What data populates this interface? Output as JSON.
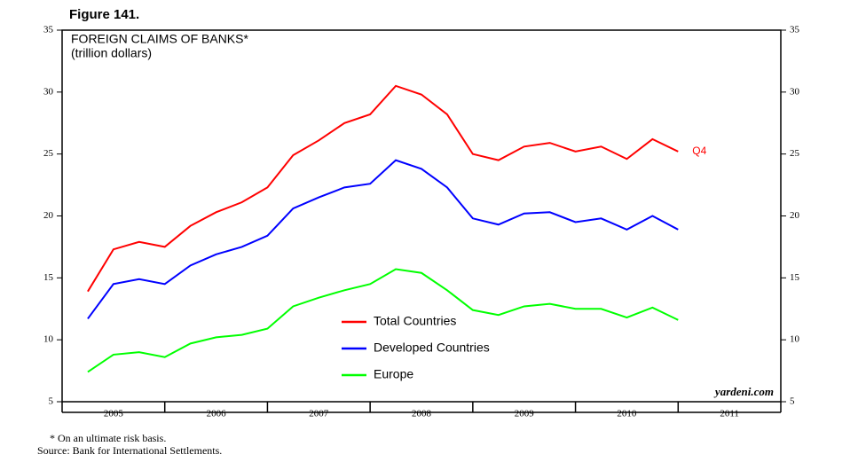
{
  "chart_data": {
    "type": "line",
    "figure_label": "Figure 141.",
    "title": "FOREIGN CLAIMS OF BANKS*",
    "subtitle": "(trillion dollars)",
    "years": [
      "2005",
      "2006",
      "2007",
      "2008",
      "2009",
      "2010",
      "2011"
    ],
    "ylim": [
      5,
      35
    ],
    "yticks": [
      5,
      10,
      15,
      20,
      25,
      30,
      35
    ],
    "y2lim": [
      5,
      35
    ],
    "y2ticks": [
      5,
      10,
      15,
      20,
      25,
      30,
      35
    ],
    "series": [
      {
        "name": "Total Countries",
        "color": "#ff0000",
        "values": [
          13.9,
          17.3,
          17.9,
          17.5,
          19.2,
          20.3,
          21.1,
          22.3,
          24.9,
          26.1,
          27.5,
          28.2,
          30.5,
          29.8,
          28.2,
          25.0,
          24.5,
          25.6,
          25.9,
          25.2,
          25.6,
          24.6,
          26.2,
          25.2
        ]
      },
      {
        "name": "Developed Countries",
        "color": "#0000ff",
        "values": [
          11.7,
          14.5,
          14.9,
          14.5,
          16.0,
          16.9,
          17.5,
          18.4,
          20.6,
          21.5,
          22.3,
          22.6,
          24.5,
          23.8,
          22.3,
          19.8,
          19.3,
          20.2,
          20.3,
          19.5,
          19.8,
          18.9,
          20.0,
          18.9
        ]
      },
      {
        "name": "Europe",
        "color": "#00ff00",
        "values": [
          7.4,
          8.8,
          9.0,
          8.6,
          9.7,
          10.2,
          10.4,
          10.9,
          12.7,
          13.4,
          14.0,
          14.5,
          15.7,
          15.4,
          14.0,
          12.4,
          12.0,
          12.7,
          12.9,
          12.5,
          12.5,
          11.8,
          12.6,
          11.6
        ]
      }
    ],
    "annotation": "Q4",
    "watermark": "yardeni.com",
    "footnote": "* On an ultimate risk basis.",
    "source": "Source: Bank for International Settlements."
  }
}
